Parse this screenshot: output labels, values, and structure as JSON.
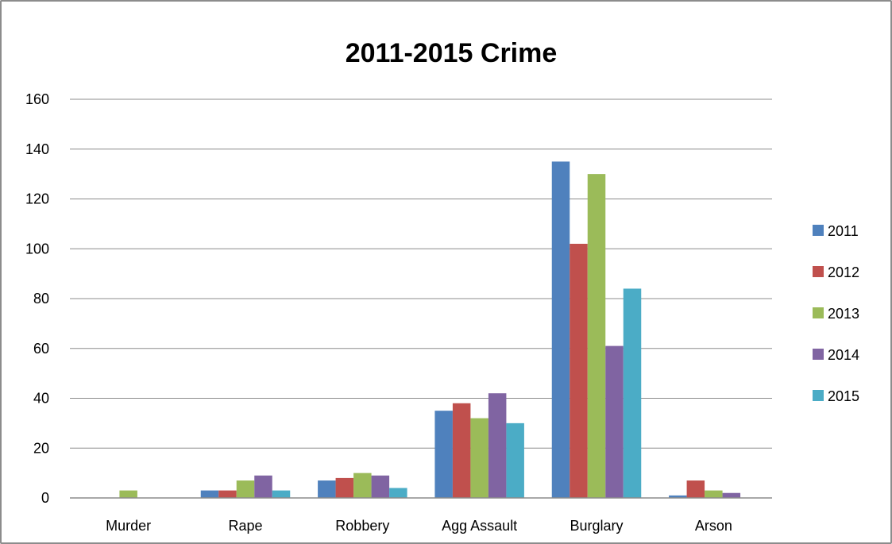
{
  "chart_data": {
    "type": "bar",
    "title": "2011-2015 Crime",
    "xlabel": "",
    "ylabel": "",
    "ylim": [
      0,
      160
    ],
    "yticks": [
      0,
      20,
      40,
      60,
      80,
      100,
      120,
      140,
      160
    ],
    "grid": true,
    "legend_position": "right",
    "categories": [
      "Murder",
      "Rape",
      "Robbery",
      "Agg Assault",
      "Burglary",
      "Arson"
    ],
    "series": [
      {
        "name": "2011",
        "color": "#4f81bd",
        "values": [
          0,
          3,
          7,
          35,
          135,
          1
        ]
      },
      {
        "name": "2012",
        "color": "#c0504d",
        "values": [
          0,
          3,
          8,
          38,
          102,
          7
        ]
      },
      {
        "name": "2013",
        "color": "#9bbb59",
        "values": [
          3,
          7,
          10,
          32,
          130,
          3
        ]
      },
      {
        "name": "2014",
        "color": "#8064a2",
        "values": [
          0,
          9,
          9,
          42,
          61,
          2
        ]
      },
      {
        "name": "2015",
        "color": "#4bacc6",
        "values": [
          0,
          3,
          4,
          30,
          84,
          0
        ]
      }
    ]
  }
}
